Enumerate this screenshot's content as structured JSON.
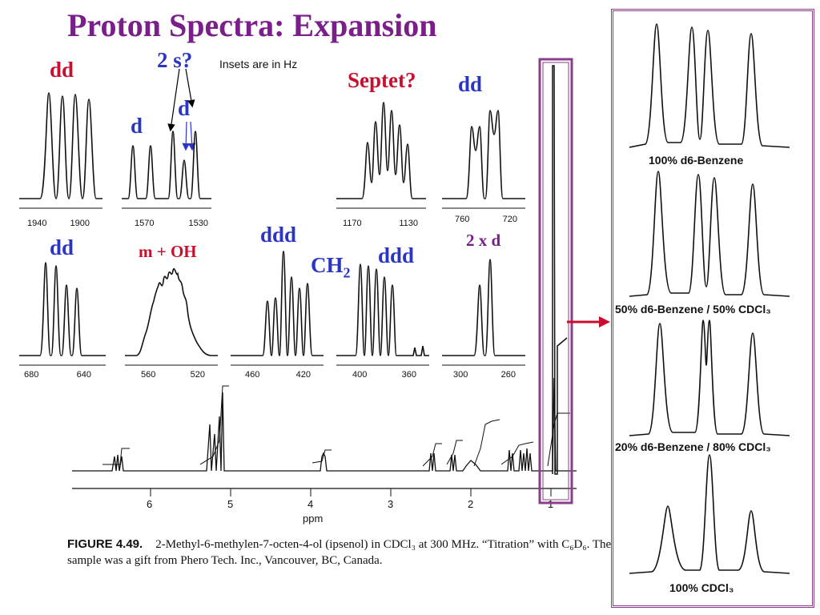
{
  "title": "Proton Spectra: Expansion",
  "note": "Insets are in Hz",
  "labels": {
    "dd1": "dd",
    "two_s": "2 s?",
    "d_left": "d",
    "d_right": "d",
    "septet": "Septet?",
    "dd2": "dd",
    "dd3": "dd",
    "m_oh": "m + OH",
    "ddd1": "ddd",
    "ch2": "CH",
    "ch2_sub": "2",
    "ddd2": "ddd",
    "two_x_d": "2 x d"
  },
  "insets": [
    {
      "ticks": [
        "1940",
        "1900"
      ]
    },
    {
      "ticks": [
        "1570",
        "1530"
      ]
    },
    {
      "ticks": [
        "1170",
        "1130"
      ]
    },
    {
      "ticks": [
        "760",
        "720"
      ]
    },
    {
      "ticks": [
        "680",
        "640"
      ]
    },
    {
      "ticks": [
        "560",
        "520"
      ]
    },
    {
      "ticks": [
        "460",
        "420"
      ]
    },
    {
      "ticks": [
        "400",
        "360"
      ]
    },
    {
      "ticks": [
        "300",
        "260"
      ]
    }
  ],
  "main_spectrum": {
    "ticks": [
      "6",
      "5",
      "4",
      "3",
      "2",
      "1"
    ],
    "axis_label": "ppm"
  },
  "caption": {
    "figure": "FIGURE 4.49.",
    "text": "2-Methyl-6-methylen-7-octen-4-ol (ipsenol) in CDCl₃ at 300 MHz. “Titration” with C₆D₆. The sample was a gift from Phero Tech. Inc., Vancouver, BC, Canada."
  },
  "titration_panels": [
    {
      "label": "100% d6-Benzene"
    },
    {
      "label": "50% d6-Benzene / 50% CDCl₃"
    },
    {
      "label": "20% d6-Benzene / 80% CDCl₃"
    },
    {
      "label": "100%  CDCl₃"
    }
  ],
  "colors": {
    "title": "#7a1f8a",
    "red": "#c8102e",
    "blue": "#2a35c4",
    "arrow": "#c8102e",
    "frame": "#8a3f8a"
  }
}
